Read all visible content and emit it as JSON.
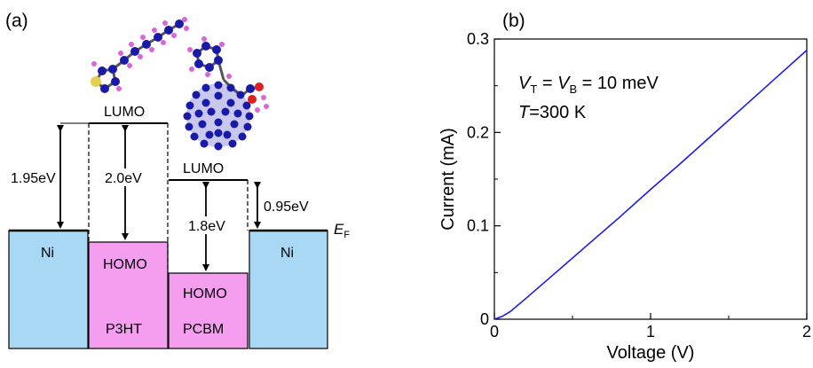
{
  "panel_a": {
    "label": "(a)",
    "levels": {
      "ni_left": "Ni",
      "ni_right": "Ni",
      "p3ht_homo": "HOMO",
      "p3ht_lumo": "LUMO",
      "p3ht_name": "P3HT",
      "pcbm_homo": "HOMO",
      "pcbm_lumo": "LUMO",
      "pcbm_name": "PCBM"
    },
    "energies": {
      "left_offset": "1.95eV",
      "p3ht_gap": "2.0eV",
      "pcbm_gap": "1.8eV",
      "right_offset": "0.95eV"
    },
    "fermi_label": "E",
    "fermi_sub": "F",
    "colors": {
      "ni": "#a9d8f5",
      "organic": "#f59ef0",
      "carbon": "#1a1aa8",
      "hydrogen": "#d866d8",
      "sulfur": "#e4d050",
      "oxygen": "#e02020"
    }
  },
  "panel_b": {
    "label": "(b)",
    "annotation_line1": {
      "v": "V",
      "sub_t": "T",
      "eq": " = ",
      "v2": "V",
      "sub_b": "B",
      "rest": " = 10 meV"
    },
    "annotation_line2": {
      "t": "T",
      "rest": "=300 K"
    },
    "line_color": "#1a1aee"
  },
  "chart_data": {
    "type": "line",
    "title": "",
    "xlabel": "Voltage (V)",
    "ylabel": "Current (mA)",
    "xlim": [
      0,
      2
    ],
    "ylim": [
      0,
      0.3
    ],
    "xticks": [
      0,
      1,
      2
    ],
    "xtick_labels": [
      "0",
      "1",
      "2"
    ],
    "yticks": [
      0,
      0.1,
      0.2,
      0.3
    ],
    "ytick_labels": [
      "0",
      "0.1",
      "0.2",
      "0.3"
    ],
    "grid": false,
    "series": [
      {
        "x": [
          0,
          0.05,
          0.1,
          0.2,
          0.4,
          0.6,
          0.8,
          1.0,
          1.2,
          1.4,
          1.6,
          1.8,
          2.0
        ],
        "y": [
          0,
          0.003,
          0.008,
          0.022,
          0.051,
          0.08,
          0.109,
          0.139,
          0.168,
          0.198,
          0.228,
          0.258,
          0.288
        ]
      }
    ]
  }
}
